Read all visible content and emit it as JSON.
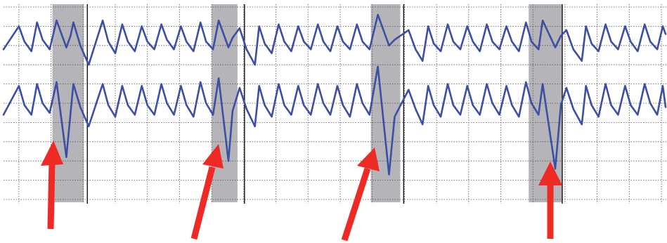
{
  "chart_data": {
    "type": "line",
    "xlim": [
      0,
      95
    ],
    "ylim": [
      0,
      10
    ],
    "xticks": [
      2.2,
      6.8,
      11.4,
      16,
      20.6,
      25.2,
      29.8,
      34.4,
      39,
      43.6,
      48.2,
      52.8,
      57.4,
      62,
      66.6,
      71.2,
      75.8,
      80.4,
      85,
      89.6,
      94.2
    ],
    "yticks": [
      0,
      1,
      2,
      3,
      4,
      5,
      6,
      7,
      8,
      9,
      10
    ],
    "grid": true,
    "shaded_spans": [
      [
        7,
        11.5
      ],
      [
        29.8,
        33.5
      ],
      [
        52.6,
        56.8
      ],
      [
        75.2,
        80
      ]
    ],
    "shade_color": "#b4b4b9",
    "markers": [
      12,
      34.5,
      57.3,
      80
    ],
    "x": [
      0,
      2.2,
      3,
      4,
      4.8,
      5.6,
      6.6,
      7.6,
      9,
      9.6,
      10,
      11,
      12.2,
      14.2,
      15,
      16,
      17,
      17.8,
      18.8,
      19.8,
      20.6,
      21.6,
      22.6,
      23.4,
      24.4,
      25.4,
      26.2,
      27.2,
      28.2,
      29,
      30,
      30.8,
      32.2,
      32.8,
      33.8,
      34.8,
      36,
      36.6,
      37.4,
      38.4,
      39.4,
      40.2,
      41.2,
      42.2,
      43,
      44,
      45,
      45.8,
      46.8,
      47.8,
      48.6,
      49.6,
      50.6,
      51.4,
      52.4,
      53.6,
      55.2,
      56,
      58,
      59,
      60,
      60.8,
      61.6,
      62.6,
      63.6,
      64.4,
      65.4,
      66.4,
      67.2,
      68.2,
      69.2,
      70,
      71,
      72,
      72.8,
      73.8,
      74.8,
      75.6,
      76.6,
      77.2,
      79,
      79.8,
      80.6,
      81.6,
      82.8,
      83.4,
      84.2,
      85.2,
      86.2,
      87,
      88,
      89,
      89.8,
      90.8,
      91.8,
      92.6,
      93.6,
      94.4,
      94.8
    ],
    "series": [
      {
        "color": "#3d4fa3",
        "values": [
          7.8,
          9.0,
          8.2,
          7.7,
          9.2,
          8.3,
          7.8,
          9.3,
          7.9,
          8.5,
          9.2,
          8.0,
          7.0,
          9.3,
          8.2,
          7.6,
          9.1,
          8.2,
          7.7,
          9.0,
          8.2,
          7.8,
          9.1,
          8.3,
          7.8,
          9.0,
          8.2,
          7.7,
          9.2,
          8.2,
          7.8,
          9.3,
          7.9,
          8.4,
          8.9,
          7.8,
          7.0,
          9.0,
          8.1,
          7.6,
          9.1,
          8.2,
          7.7,
          9.0,
          8.2,
          7.8,
          9.1,
          8.2,
          7.7,
          9.0,
          8.2,
          7.8,
          9.1,
          8.2,
          7.8,
          9.6,
          8.0,
          8.3,
          8.8,
          7.8,
          7.2,
          9.0,
          8.1,
          7.7,
          9.1,
          8.2,
          7.8,
          9.0,
          8.2,
          7.7,
          9.1,
          8.2,
          7.8,
          9.0,
          8.2,
          7.7,
          9.2,
          8.2,
          7.8,
          9.3,
          7.9,
          8.5,
          8.8,
          7.8,
          7.2,
          9.0,
          8.1,
          7.7,
          9.1,
          8.2,
          7.8,
          9.0,
          8.2,
          7.7,
          9.1,
          8.2,
          7.8,
          9.0,
          8.6
        ]
      },
      {
        "color": "#3d4fa3",
        "values": [
          4.4,
          5.9,
          4.9,
          4.4,
          6.0,
          5.0,
          4.5,
          6.1,
          2.2,
          4.5,
          6.0,
          4.8,
          3.8,
          6.0,
          4.9,
          4.3,
          5.9,
          4.9,
          4.4,
          5.9,
          4.9,
          4.4,
          6.0,
          5.0,
          4.4,
          5.9,
          4.9,
          4.3,
          6.1,
          5.0,
          4.4,
          6.3,
          2.0,
          4.6,
          5.8,
          4.7,
          3.8,
          5.9,
          4.9,
          4.3,
          6.0,
          4.9,
          4.4,
          5.9,
          4.9,
          4.4,
          6.0,
          5.0,
          4.4,
          5.9,
          4.9,
          4.3,
          6.0,
          5.0,
          4.4,
          6.9,
          1.3,
          4.3,
          5.7,
          4.7,
          3.9,
          5.9,
          4.9,
          4.3,
          6.0,
          4.9,
          4.4,
          5.9,
          4.9,
          4.4,
          6.0,
          5.0,
          4.4,
          5.9,
          4.9,
          4.3,
          6.1,
          5.0,
          4.4,
          6.0,
          1.6,
          4.9,
          5.8,
          4.7,
          3.9,
          5.9,
          4.9,
          4.3,
          6.0,
          4.9,
          4.4,
          5.9,
          4.9,
          4.4,
          6.0,
          5.0,
          4.4,
          5.9,
          4.8
        ]
      }
    ]
  }
}
